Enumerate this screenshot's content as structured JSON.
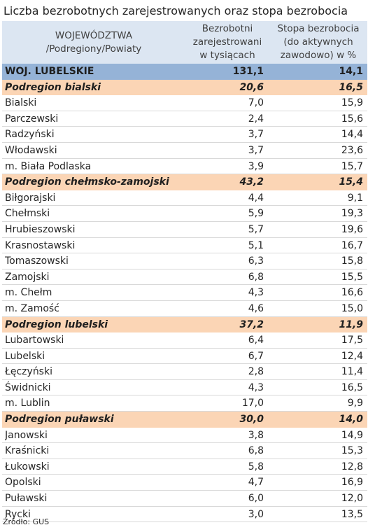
{
  "title": "Liczba bezrobotnych zarejestrowanych oraz stopa bezrobocia",
  "header": {
    "col1": "WOJEWÓDZTWA\n/Podregiony/Powiaty",
    "col2": "Bezrobotni\nzarejestrowani\nw tysiącach",
    "col3": "Stopa bezrobocia\n(do aktywnych\nzawodowo) w %"
  },
  "rows": [
    {
      "type": "voiv",
      "name": "WOJ. LUBELSKIE",
      "unemployed": "131,1",
      "rate": "14,1"
    },
    {
      "type": "sub",
      "name": "Podregion bialski",
      "unemployed": "20,6",
      "rate": "16,5"
    },
    {
      "type": "pov",
      "name": "Bialski",
      "unemployed": "7,0",
      "rate": "15,9"
    },
    {
      "type": "pov",
      "name": "Parczewski",
      "unemployed": "2,4",
      "rate": "15,6"
    },
    {
      "type": "pov",
      "name": "Radzyński",
      "unemployed": "3,7",
      "rate": "14,4"
    },
    {
      "type": "pov",
      "name": "Włodawski",
      "unemployed": "3,7",
      "rate": "23,6"
    },
    {
      "type": "pov",
      "name": "m. Biała Podlaska",
      "unemployed": "3,9",
      "rate": "15,7"
    },
    {
      "type": "sub",
      "name": "Podregion chełmsko-zamojski",
      "unemployed": "43,2",
      "rate": "15,4"
    },
    {
      "type": "pov",
      "name": "Biłgorajski",
      "unemployed": "4,4",
      "rate": "9,1"
    },
    {
      "type": "pov",
      "name": "Chełmski",
      "unemployed": "5,9",
      "rate": "19,3"
    },
    {
      "type": "pov",
      "name": "Hrubieszowski",
      "unemployed": "5,7",
      "rate": "19,6"
    },
    {
      "type": "pov",
      "name": "Krasnostawski",
      "unemployed": "5,1",
      "rate": "16,7"
    },
    {
      "type": "pov",
      "name": "Tomaszowski",
      "unemployed": "6,3",
      "rate": "15,8"
    },
    {
      "type": "pov",
      "name": "Zamojski",
      "unemployed": "6,8",
      "rate": "15,5"
    },
    {
      "type": "pov",
      "name": "m. Chełm",
      "unemployed": "4,3",
      "rate": "16,6"
    },
    {
      "type": "pov",
      "name": "m. Zamość",
      "unemployed": "4,6",
      "rate": "15,0"
    },
    {
      "type": "sub",
      "name": "Podregion lubelski",
      "unemployed": "37,2",
      "rate": "11,9"
    },
    {
      "type": "pov",
      "name": "Lubartowski",
      "unemployed": "6,4",
      "rate": "17,5"
    },
    {
      "type": "pov",
      "name": "Lubelski",
      "unemployed": "6,7",
      "rate": "12,4"
    },
    {
      "type": "pov",
      "name": "Łęczyński",
      "unemployed": "2,8",
      "rate": "11,4"
    },
    {
      "type": "pov",
      "name": "Świdnicki",
      "unemployed": "4,3",
      "rate": "16,5"
    },
    {
      "type": "pov",
      "name": "m. Lublin",
      "unemployed": "17,0",
      "rate": "9,9"
    },
    {
      "type": "sub",
      "name": "Podregion puławski",
      "unemployed": "30,0",
      "rate": "14,0"
    },
    {
      "type": "pov",
      "name": "Janowski",
      "unemployed": "3,8",
      "rate": "14,9"
    },
    {
      "type": "pov",
      "name": "Kraśnicki",
      "unemployed": "6,8",
      "rate": "15,3"
    },
    {
      "type": "pov",
      "name": "Łukowski",
      "unemployed": "5,8",
      "rate": "12,8"
    },
    {
      "type": "pov",
      "name": "Opolski",
      "unemployed": "4,7",
      "rate": "16,9"
    },
    {
      "type": "pov",
      "name": "Puławski",
      "unemployed": "6,0",
      "rate": "12,0"
    },
    {
      "type": "pov",
      "name": "Rycki",
      "unemployed": "3,0",
      "rate": "13,5"
    }
  ],
  "source": "Źródło: GUS",
  "colors": {
    "header_bg": "#dce6f2",
    "voivodeship_bg": "#95b3d7",
    "subregion_bg": "#fbd5b5"
  }
}
